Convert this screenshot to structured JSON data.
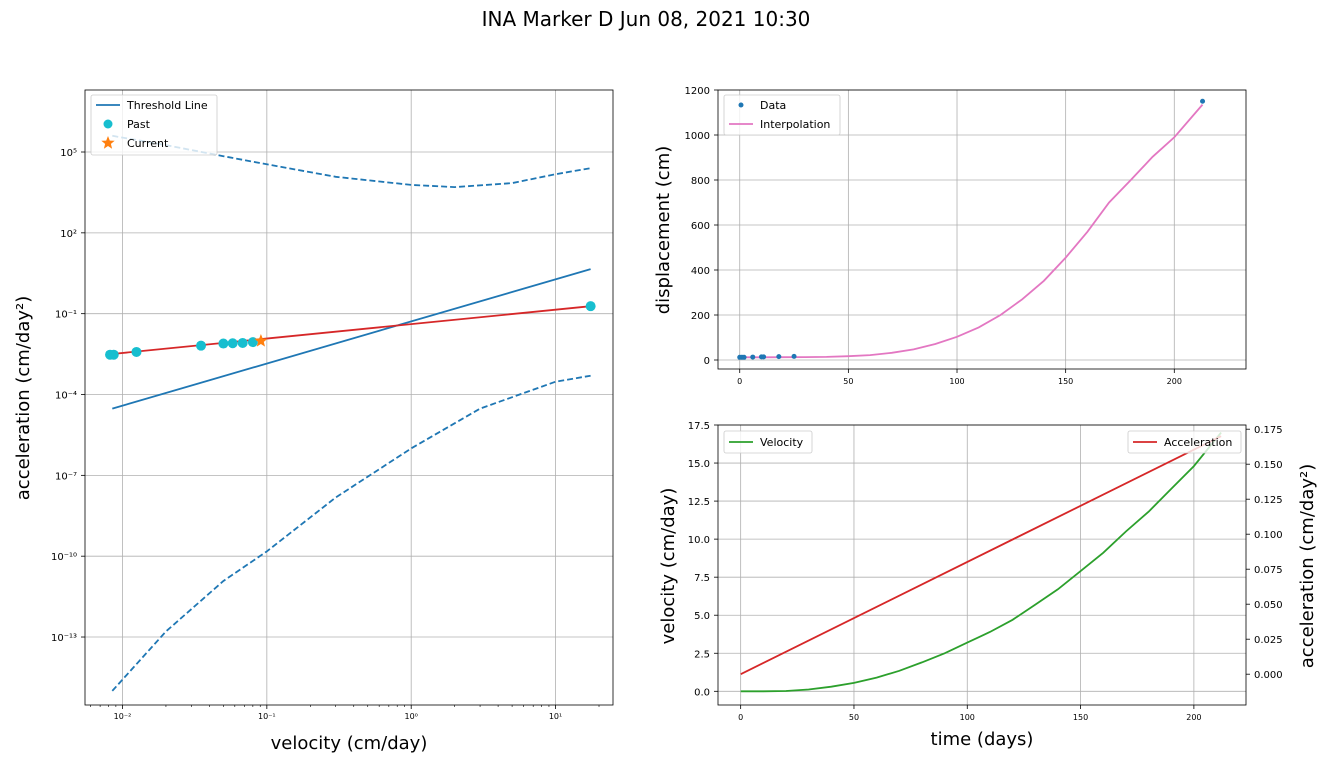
{
  "figure": {
    "title": "INA Marker D Jun 08, 2021 10:30"
  },
  "chart_data": [
    {
      "type": "scatter",
      "xscale": "log",
      "yscale": "log",
      "xlabel": "velocity (cm/day)",
      "ylabel": "acceleration (cm/day²)",
      "xlim": [
        0.0055,
        25
      ],
      "ylim": [
        3e-16,
        20000000.0
      ],
      "grid": true,
      "legend_position": "upper-left",
      "x_ticks": [
        0.01,
        0.1,
        1,
        10
      ],
      "x_tick_labels": [
        "10⁻²",
        "10⁻¹",
        "10⁰",
        "10¹"
      ],
      "y_ticks": [
        1e-13,
        1e-10,
        1e-07,
        0.0001,
        0.1,
        100,
        100000
      ],
      "y_tick_labels": [
        "10⁻¹³",
        "10⁻¹⁰",
        "10⁻⁷",
        "10⁻⁴",
        "10⁻¹",
        "10²",
        "10⁵"
      ],
      "threshold_line": {
        "name": "Threshold Line",
        "color": "#1f77b4",
        "x": [
          0.0085,
          17.5
        ],
        "y": [
          3e-05,
          4.5
        ]
      },
      "threshold_upper": {
        "color": "#1f77b4",
        "x": [
          0.0085,
          0.02,
          0.05,
          0.1,
          0.3,
          1,
          2,
          5,
          10,
          17.5
        ],
        "y": [
          400000,
          180000,
          70000,
          35000,
          12000,
          6000,
          5000,
          7000,
          15000,
          25000
        ]
      },
      "threshold_lower": {
        "color": "#1f77b4",
        "x": [
          0.0085,
          0.02,
          0.05,
          0.1,
          0.3,
          1,
          3,
          10,
          17.5
        ],
        "y": [
          1e-15,
          1.6e-13,
          1.2e-11,
          1.5e-10,
          1.5e-08,
          1e-06,
          3e-05,
          0.0003,
          0.0005
        ]
      },
      "fit_line": {
        "color": "#d62728",
        "x": [
          0.0085,
          17.5
        ],
        "y": [
          0.0032,
          0.19
        ]
      },
      "past": {
        "name": "Past",
        "color": "#17becf",
        "x": [
          0.0082,
          0.0087,
          0.0125,
          0.035,
          0.05,
          0.058,
          0.068,
          0.08,
          17.5
        ],
        "y": [
          0.003,
          0.003,
          0.0038,
          0.0065,
          0.0078,
          0.008,
          0.0082,
          0.0088,
          0.19
        ]
      },
      "current": {
        "name": "Current",
        "color": "#ff7f0e",
        "x": [
          0.091
        ],
        "y": [
          0.0097
        ]
      }
    },
    {
      "type": "line",
      "xlabel": "",
      "ylabel": "displacement (cm)",
      "xlim": [
        -10,
        233
      ],
      "ylim": [
        -40,
        1200
      ],
      "x_ticks": [
        0,
        50,
        100,
        150,
        200
      ],
      "y_ticks": [
        0,
        200,
        400,
        600,
        800,
        1000,
        1200
      ],
      "grid": true,
      "legend_position": "upper-left",
      "data_series": {
        "name": "Data",
        "color": "#1f77b4",
        "x": [
          0,
          1,
          2,
          6,
          10,
          11,
          18,
          25,
          213
        ],
        "y": [
          12,
          12,
          12,
          13,
          14,
          14,
          15,
          16,
          1150
        ]
      },
      "interp_series": {
        "name": "Interpolation",
        "color": "#e377c2",
        "x": [
          0,
          10,
          20,
          30,
          40,
          50,
          60,
          70,
          80,
          90,
          100,
          110,
          120,
          130,
          140,
          150,
          160,
          170,
          180,
          190,
          200,
          213
        ],
        "y": [
          12,
          12,
          12.5,
          13,
          14,
          17,
          22,
          32,
          47,
          71,
          103,
          145,
          200,
          270,
          352,
          455,
          570,
          700,
          800,
          903,
          990,
          1135
        ]
      }
    },
    {
      "type": "line",
      "xlabel": "time (days)",
      "ylabel": "velocity (cm/day)",
      "ylabel_right": "acceleration (cm/day²)",
      "xlim": [
        -10,
        223
      ],
      "ylim": [
        -0.9,
        17.5
      ],
      "ylim_right": [
        -0.022,
        0.178
      ],
      "x_ticks": [
        0,
        50,
        100,
        150,
        200
      ],
      "y_ticks": [
        0.0,
        2.5,
        5.0,
        7.5,
        10.0,
        12.5,
        15.0,
        17.5
      ],
      "y_tick_labels": [
        "0.0",
        "2.5",
        "5.0",
        "7.5",
        "10.0",
        "12.5",
        "15.0",
        "17.5"
      ],
      "y_ticks_right": [
        0.0,
        0.025,
        0.05,
        0.075,
        0.1,
        0.125,
        0.15,
        0.175
      ],
      "y_tick_labels_right": [
        "0.000",
        "0.025",
        "0.050",
        "0.075",
        "0.100",
        "0.125",
        "0.150",
        "0.175"
      ],
      "grid": true,
      "velocity": {
        "name": "Velocity",
        "color": "#2ca02c",
        "legend_position": "upper-left",
        "x": [
          0,
          10,
          20,
          30,
          40,
          50,
          60,
          70,
          80,
          90,
          100,
          110,
          120,
          130,
          140,
          150,
          160,
          170,
          180,
          190,
          200,
          212
        ],
        "y": [
          0.0,
          0.0,
          0.02,
          0.12,
          0.3,
          0.55,
          0.9,
          1.35,
          1.9,
          2.5,
          3.2,
          3.9,
          4.7,
          5.7,
          6.7,
          7.9,
          9.1,
          10.5,
          11.8,
          13.3,
          14.8,
          17.0
        ]
      },
      "acceleration": {
        "name": "Acceleration",
        "color": "#d62728",
        "legend_position": "upper-right",
        "x": [
          0,
          212
        ],
        "y": [
          0.0,
          0.17
        ]
      }
    }
  ]
}
